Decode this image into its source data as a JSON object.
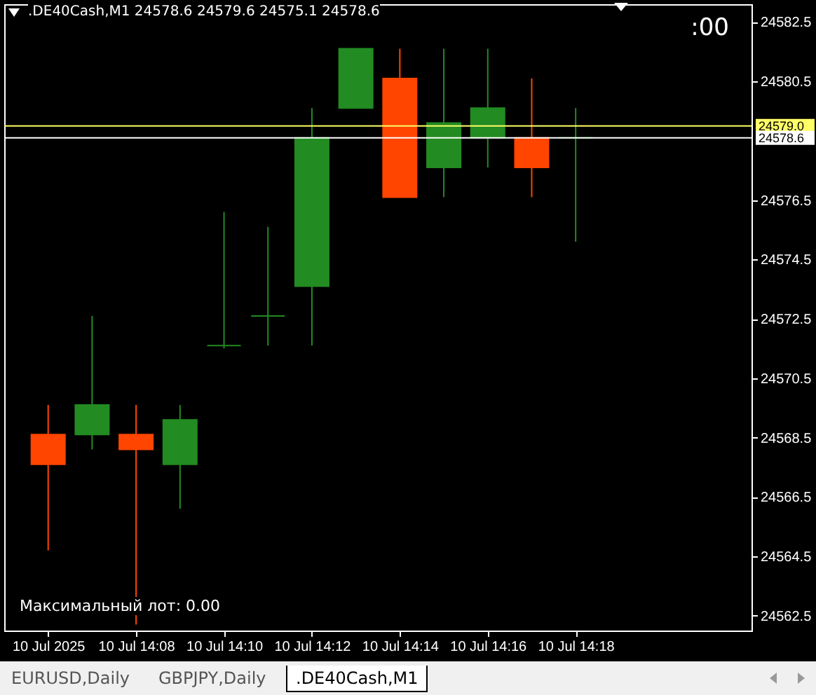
{
  "chart_data": {
    "type": "candlestick",
    "title": ".DE40Cash,M1  24578.6 24579.6 24575.1 24578.6",
    "x": [
      "2025-07-10T14:06",
      "2025-07-10T14:07",
      "2025-07-10T14:08",
      "2025-07-10T14:09",
      "2025-07-10T14:10",
      "2025-07-10T14:11",
      "2025-07-10T14:12",
      "2025-07-10T14:13",
      "2025-07-10T14:14",
      "2025-07-10T14:15",
      "2025-07-10T14:16",
      "2025-07-10T14:17",
      "2025-07-10T14:18"
    ],
    "ohlc": [
      [
        24568.6,
        24569.6,
        24564.7,
        24567.6
      ],
      [
        24568.6,
        24572.6,
        24568.1,
        24569.6
      ],
      [
        24568.6,
        24569.6,
        24562.2,
        24568.1
      ],
      [
        24567.6,
        24569.6,
        24566.1,
        24569.1
      ],
      [
        24571.6,
        24576.1,
        24571.5,
        24571.6
      ],
      [
        24572.6,
        24575.6,
        24571.6,
        24572.6
      ],
      [
        24573.6,
        24579.6,
        24571.6,
        24578.6
      ],
      [
        24579.6,
        24581.6,
        24579.6,
        24581.6
      ],
      [
        24580.6,
        24581.6,
        24576.6,
        24576.6
      ],
      [
        24577.6,
        24581.6,
        24576.6,
        24579.1
      ],
      [
        24578.6,
        24581.6,
        24577.6,
        24579.6
      ],
      [
        24578.6,
        24580.6,
        24576.6,
        24577.6
      ],
      [
        24578.6,
        24579.6,
        24575.1,
        24578.6
      ]
    ],
    "colors": [
      "#ff4500",
      "#228b22",
      "#ff4500",
      "#228b22",
      "#228b22",
      "#228b22",
      "#228b22",
      "#228b22",
      "#ff4500",
      "#228b22",
      "#228b22",
      "#ff4500",
      "#228b22"
    ],
    "xlim": [
      "2025-07-10T14:05",
      "2025-07-10T14:22"
    ],
    "xticks": [
      {
        "value": "2025-07-10T14:06",
        "label": "10 Jul 2025"
      },
      {
        "value": "2025-07-10T14:08",
        "label": "10 Jul 14:08"
      },
      {
        "value": "2025-07-10T14:10",
        "label": "10 Jul 14:10"
      },
      {
        "value": "2025-07-10T14:12",
        "label": "10 Jul 14:12"
      },
      {
        "value": "2025-07-10T14:14",
        "label": "10 Jul 14:14"
      },
      {
        "value": "2025-07-10T14:16",
        "label": "10 Jul 14:16"
      },
      {
        "value": "2025-07-10T14:18",
        "label": "10 Jul 14:18"
      }
    ],
    "ylim": [
      24562.0,
      24583.1
    ],
    "yticks": [
      24562.5,
      24564.5,
      24566.5,
      24568.5,
      24570.5,
      24572.5,
      24574.5,
      24576.5,
      24580.5,
      24582.5
    ],
    "ref_lines": [
      {
        "axis": "y",
        "value": 24579.0,
        "label": "24579.0",
        "color": "#ffff66"
      },
      {
        "axis": "y",
        "value": 24578.6,
        "label": "24578.6",
        "color": "#ffffff"
      }
    ],
    "annotations": [
      ":00",
      "Максимальный лот: 0.00",
      "EURUSD,Daily",
      "GBPJPY,Daily",
      ".DE40Cash,M1"
    ],
    "grid": false
  }
}
